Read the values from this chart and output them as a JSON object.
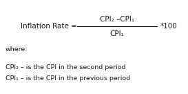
{
  "bg_color": "#ffffff",
  "text_color": "#1a1a1a",
  "formula_label": "Inflation Rate = ",
  "numerator": "CPI₂ –CPI₁",
  "denominator": "CPI₁",
  "multiplier": "*100",
  "where_text": "where:",
  "line1": "CPI₂ – is the CPI in the second period",
  "line2": "CPI₁ – is the CPI in the previous period",
  "fontsize_formula": 7.5,
  "fontsize_body": 6.8,
  "fig_width": 2.73,
  "fig_height": 1.36,
  "dpi": 100
}
